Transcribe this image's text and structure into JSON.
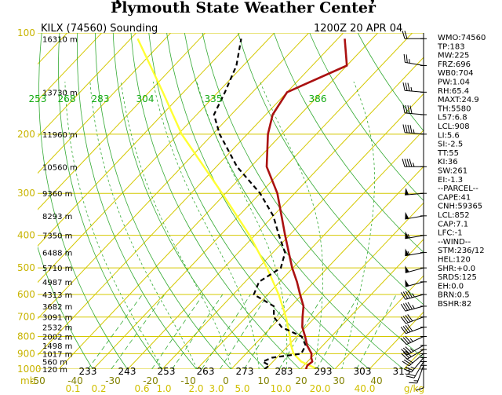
{
  "header": {
    "title": "Plymouth State Weather Center",
    "station": "KILX (74560) Sounding",
    "time": "1200Z 20 APR 04"
  },
  "axes": {
    "pressure_levels": [
      "100",
      "200",
      "300",
      "400",
      "500",
      "600",
      "700",
      "800",
      "900",
      "1000"
    ],
    "pressure_unit": "mb",
    "temperature_ticks": [
      "-50",
      "-40",
      "-30",
      "-20",
      "-10",
      "0",
      "10",
      "20",
      "30",
      "40"
    ],
    "height_labels": [
      {
        "p": 104,
        "text": "16310 m"
      },
      {
        "p": 150,
        "text": "13730 m"
      },
      {
        "p": 200,
        "text": "11960 m"
      },
      {
        "p": 250,
        "text": "10560 m"
      },
      {
        "p": 300,
        "text": "9360 m"
      },
      {
        "p": 350,
        "text": "8293 m"
      },
      {
        "p": 400,
        "text": "7350 m"
      },
      {
        "p": 450,
        "text": "6488 m"
      },
      {
        "p": 500,
        "text": "5710 m"
      },
      {
        "p": 550,
        "text": "4987 m"
      },
      {
        "p": 600,
        "text": "4313 m"
      },
      {
        "p": 650,
        "text": "3682 m"
      },
      {
        "p": 700,
        "text": "3091 m"
      },
      {
        "p": 750,
        "text": "2532 m"
      },
      {
        "p": 800,
        "text": "2002 m"
      },
      {
        "p": 850,
        "text": "1498 m"
      },
      {
        "p": 900,
        "text": "1017 m"
      },
      {
        "p": 950,
        "text": "560 m"
      },
      {
        "p": 1000,
        "text": "120 m"
      }
    ],
    "theta_bottom": [
      "233",
      "243",
      "253",
      "263",
      "273",
      "283",
      "293",
      "303",
      "313"
    ],
    "theta_top": [
      "253",
      "268",
      "283",
      "304",
      "335",
      "386"
    ],
    "mixing_ratio_ticks": [
      "0.1",
      "0.2",
      "0.6",
      "1.0",
      "2.0",
      "3.0",
      "5.0",
      "10.0",
      "20.0",
      "40.0"
    ],
    "mixing_ratio_unit": "g/kg"
  },
  "indices": [
    "WMO:74560",
    "TP:183",
    "MW:225",
    "FRZ:696",
    "WB0:704",
    "PW:1.04",
    "RH:65.4",
    "MAXT:24.9",
    "TH:5580",
    "L57:6.8",
    "LCL:908",
    "LI:5.6",
    "SI:-2.5",
    "TT:55",
    "KI:36",
    "SW:261",
    "EI:-1.3",
    "--PARCEL--",
    "CAPE:41",
    "CNH:59365",
    "LCL:852",
    "CAP:7.1",
    "LFC:-1",
    "--WIND--",
    "STM:236/12",
    "HEL:120",
    "SHR:+0.0",
    "SRDS:125",
    "EH:0.0",
    "BRN:0.5",
    "BSHR:82"
  ],
  "colors": {
    "temperature": "#aa1111",
    "dewpoint": "#000000",
    "isobar": "#d4c800",
    "isotherm": "#d4c800",
    "dry_adiabat": "#33aa33",
    "moist_adiabat": "#33aa33",
    "mixing_ratio": "#33aa33",
    "parcel": "#ffff33"
  },
  "chart_data": {
    "type": "line",
    "title": "Plymouth State Weather Center",
    "subtitle": "KILX (74560) Sounding 1200Z 20 APR 04",
    "ylabel": "mb",
    "xlabel": "",
    "y_scale": "log-pressure",
    "ylim": [
      1000,
      100
    ],
    "xlim": [
      -50,
      40
    ],
    "grid": true,
    "series": [
      {
        "pressure": [
          1000,
          975,
          950,
          925,
          900,
          850,
          800,
          750,
          700,
          650,
          600,
          550,
          500,
          450,
          400,
          350,
          300,
          250,
          200,
          175,
          150,
          125,
          104
        ],
        "values": [
          21.6,
          21.0,
          21.4,
          20.0,
          19.0,
          15.4,
          12.4,
          9.0,
          6.3,
          3.6,
          -0.6,
          -5.0,
          -10.2,
          -15.4,
          -21.2,
          -27.6,
          -35.0,
          -45.4,
          -54.0,
          -58.0,
          -60.0,
          -50.0,
          -58.0
        ]
      },
      {
        "pressure": [
          1000,
          975,
          950,
          925,
          900,
          850,
          800,
          750,
          700,
          650,
          600,
          550,
          500,
          450,
          400,
          350,
          300,
          250,
          200,
          175,
          150,
          125,
          104
        ],
        "values": [
          9.6,
          10.0,
          7.0,
          8.6,
          16.0,
          15.0,
          11.4,
          3.0,
          -2.0,
          -5.0,
          -14.0,
          -16.0,
          -13.5,
          -16.5,
          -23.0,
          -30.0,
          -40.0,
          -54.0,
          -68.0,
          -75.0,
          -78.0,
          -82.0,
          -88.0
        ]
      },
      {
        "pressure": [
          1000,
          950,
          900,
          852,
          800,
          700,
          600,
          500,
          400,
          300,
          200,
          150,
          104
        ],
        "values": [
          24.9,
          18.2,
          13.8,
          10.9,
          8.0,
          1.5,
          -6.8,
          -17.5,
          -31.5,
          -51.0,
          -79.0,
          -96.0,
          -118.0
        ]
      }
    ],
    "winds": [
      {
        "p": 1000,
        "dir": 180,
        "spd": 10
      },
      {
        "p": 975,
        "dir": 200,
        "spd": 15
      },
      {
        "p": 950,
        "dir": 210,
        "spd": 20
      },
      {
        "p": 925,
        "dir": 220,
        "spd": 25
      },
      {
        "p": 900,
        "dir": 230,
        "spd": 30
      },
      {
        "p": 875,
        "dir": 240,
        "spd": 30
      },
      {
        "p": 850,
        "dir": 240,
        "spd": 35
      },
      {
        "p": 800,
        "dir": 245,
        "spd": 35
      },
      {
        "p": 750,
        "dir": 250,
        "spd": 40
      },
      {
        "p": 700,
        "dir": 250,
        "spd": 40
      },
      {
        "p": 650,
        "dir": 255,
        "spd": 45
      },
      {
        "p": 600,
        "dir": 255,
        "spd": 45
      },
      {
        "p": 550,
        "dir": 255,
        "spd": 50
      },
      {
        "p": 500,
        "dir": 255,
        "spd": 50
      },
      {
        "p": 450,
        "dir": 260,
        "spd": 55
      },
      {
        "p": 400,
        "dir": 260,
        "spd": 55
      },
      {
        "p": 350,
        "dir": 260,
        "spd": 50
      },
      {
        "p": 300,
        "dir": 265,
        "spd": 50
      },
      {
        "p": 250,
        "dir": 270,
        "spd": 45
      },
      {
        "p": 200,
        "dir": 275,
        "spd": 45
      },
      {
        "p": 175,
        "dir": 275,
        "spd": 40
      },
      {
        "p": 150,
        "dir": 275,
        "spd": 35
      },
      {
        "p": 125,
        "dir": 280,
        "spd": 25
      },
      {
        "p": 104,
        "dir": 270,
        "spd": 20
      }
    ]
  }
}
